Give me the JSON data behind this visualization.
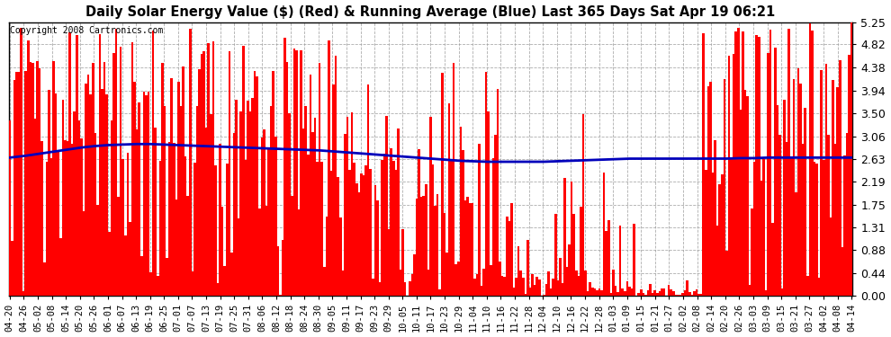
{
  "title": "Daily Solar Energy Value ($) (Red) & Running Average (Blue) Last 365 Days Sat Apr 19 06:21",
  "copyright": "Copyright 2008 Cartronics.com",
  "yticks": [
    0.0,
    0.44,
    0.88,
    1.31,
    1.75,
    2.19,
    2.63,
    3.06,
    3.5,
    3.94,
    4.38,
    4.82,
    5.25
  ],
  "bar_color": "#FF0000",
  "avg_color": "#0000BB",
  "bg_color": "#FFFFFF",
  "grid_color": "#999999",
  "xtick_labels": [
    "04-20",
    "04-26",
    "05-02",
    "05-08",
    "05-14",
    "05-20",
    "05-26",
    "06-01",
    "06-07",
    "06-13",
    "06-19",
    "06-25",
    "07-01",
    "07-07",
    "07-13",
    "07-19",
    "07-25",
    "07-31",
    "08-06",
    "08-12",
    "08-18",
    "08-24",
    "08-30",
    "09-05",
    "09-11",
    "09-17",
    "09-23",
    "09-29",
    "10-05",
    "10-11",
    "10-17",
    "10-23",
    "10-29",
    "11-04",
    "11-10",
    "11-16",
    "11-22",
    "11-28",
    "12-04",
    "12-10",
    "12-16",
    "12-22",
    "12-28",
    "01-03",
    "01-09",
    "01-15",
    "01-21",
    "01-27",
    "02-02",
    "02-08",
    "02-14",
    "02-20",
    "02-26",
    "03-03",
    "03-09",
    "03-15",
    "03-21",
    "03-27",
    "04-02",
    "04-08",
    "04-14"
  ],
  "avg_points": [
    2.65,
    2.68,
    2.72,
    2.76,
    2.8,
    2.84,
    2.87,
    2.89,
    2.9,
    2.91,
    2.91,
    2.9,
    2.89,
    2.88,
    2.87,
    2.86,
    2.85,
    2.84,
    2.83,
    2.82,
    2.81,
    2.8,
    2.79,
    2.77,
    2.75,
    2.73,
    2.71,
    2.69,
    2.67,
    2.65,
    2.63,
    2.61,
    2.59,
    2.58,
    2.57,
    2.57,
    2.57,
    2.57,
    2.57,
    2.58,
    2.59,
    2.6,
    2.61,
    2.62,
    2.63,
    2.63,
    2.63,
    2.63,
    2.63,
    2.63,
    2.63,
    2.63,
    2.64,
    2.64,
    2.65,
    2.65,
    2.65,
    2.65,
    2.65,
    2.65,
    2.65
  ]
}
